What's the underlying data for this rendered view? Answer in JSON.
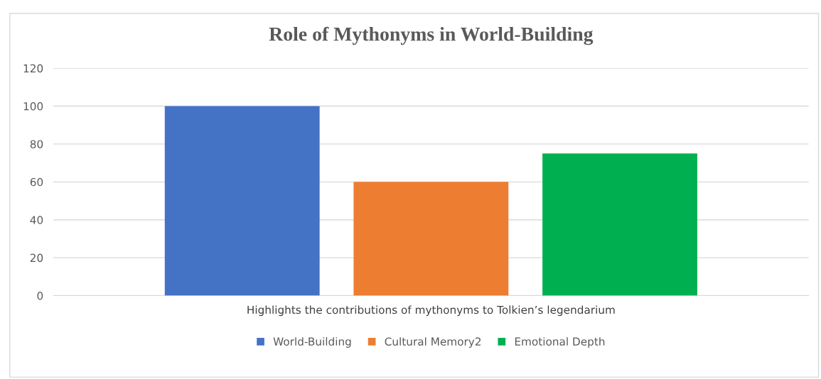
{
  "chart_data": {
    "type": "bar",
    "title": "Role of Mythonyms in World-Building",
    "categories": [
      "Highlights the contributions of mythonyms to Tolkien’s legendarium"
    ],
    "series": [
      {
        "name": "World-Building",
        "color": "#4472c4",
        "values": [
          100
        ]
      },
      {
        "name": "Cultural Memory2",
        "color": "#ed7d31",
        "values": [
          60
        ]
      },
      {
        "name": "Emotional Depth",
        "color": "#00b050",
        "values": [
          75
        ]
      }
    ],
    "ylim": [
      0,
      120
    ],
    "yticks": [
      0,
      20,
      40,
      60,
      80,
      100,
      120
    ],
    "grid": "y",
    "legend": "bottom"
  }
}
